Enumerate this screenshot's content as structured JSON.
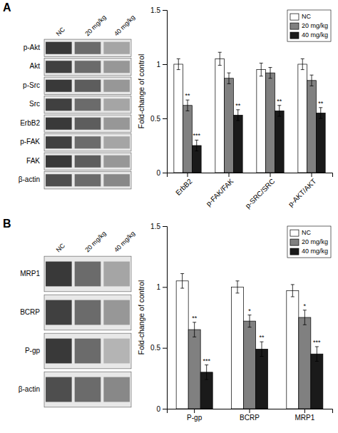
{
  "chart_data": [
    {
      "type": "blot",
      "title": "A",
      "categories": [
        "p-Akt",
        "Akt",
        "p-Src",
        "Src",
        "ErbB2",
        "p-FAK",
        "FAK",
        "β-actin"
      ],
      "x": [
        "NC",
        "20 mg/kg",
        "40 mg/kg"
      ],
      "color": "#e8e8e8",
      "colors": [
        [
          "#1a1a1a",
          "#555555",
          "#999999"
        ],
        [
          "#222222",
          "#555555",
          "#888888"
        ],
        [
          "#1a1a1a",
          "#444444",
          "#888888"
        ],
        [
          "#222222",
          "#555555",
          "#999999"
        ],
        [
          "#1a1a1a",
          "#444444",
          "#888888"
        ],
        [
          "#222222",
          "#555555",
          "#999999"
        ],
        [
          "#1a1a1a",
          "#444444",
          "#888888"
        ],
        [
          "#333333",
          "#555555",
          "#777777"
        ]
      ]
    },
    {
      "type": "bar",
      "categories": [
        "ErbB2",
        "p-FAK/FAK",
        "p-SRC/SRC",
        "p-AKT/AKT"
      ],
      "series": [
        {
          "name": "NC",
          "color": "#ffffff",
          "values": [
            1.0,
            1.05,
            0.95,
            1.0
          ],
          "errors": [
            0.05,
            0.06,
            0.06,
            0.05
          ]
        },
        {
          "name": "20 mg/kg",
          "color": "#808080",
          "values": [
            0.62,
            0.87,
            0.92,
            0.85
          ],
          "errors": [
            0.05,
            0.05,
            0.05,
            0.05
          ],
          "annotations": [
            "**",
            null,
            null,
            null
          ]
        },
        {
          "name": "40 mg/kg",
          "color": "#1a1a1a",
          "values": [
            0.25,
            0.53,
            0.57,
            0.55
          ],
          "errors": [
            0.05,
            0.05,
            0.05,
            0.05
          ],
          "annotations": [
            "***",
            "**",
            "**",
            "**"
          ]
        }
      ],
      "ylabel": "Fold-change of control",
      "ylim": [
        0.0,
        1.5
      ],
      "yticks": [
        0,
        0.5,
        1,
        1.5
      ],
      "legend": "upper right",
      "grid": false
    },
    {
      "type": "blot",
      "title": "B",
      "categories": [
        "MRP1",
        "BCRP",
        "P-gp",
        "β-actin"
      ],
      "x": [
        "NC",
        "20 mg/kg",
        "40 mg/kg"
      ],
      "color": "#e8e8e8",
      "colors": [
        [
          "#1a1a1a",
          "#555555",
          "#999999"
        ],
        [
          "#222222",
          "#555555",
          "#888888"
        ],
        [
          "#1a1a1a",
          "#555555",
          "#aaaaaa"
        ],
        [
          "#333333",
          "#555555",
          "#777777"
        ]
      ]
    },
    {
      "type": "bar",
      "categories": [
        "P-gp",
        "BCRP",
        "MRP1"
      ],
      "series": [
        {
          "name": "NC",
          "color": "#ffffff",
          "values": [
            1.05,
            1.0,
            0.97
          ],
          "errors": [
            0.06,
            0.05,
            0.05
          ]
        },
        {
          "name": "20 mg/kg",
          "color": "#808080",
          "values": [
            0.65,
            0.72,
            0.75
          ],
          "errors": [
            0.06,
            0.05,
            0.06
          ],
          "annotations": [
            "**",
            "*",
            "*"
          ]
        },
        {
          "name": "40 mg/kg",
          "color": "#1a1a1a",
          "values": [
            0.3,
            0.49,
            0.45
          ],
          "errors": [
            0.06,
            0.06,
            0.06
          ],
          "annotations": [
            "***",
            "**",
            "***"
          ]
        }
      ],
      "ylabel": "Fold-change of control",
      "ylim": [
        0.0,
        1.5
      ],
      "yticks": [
        0,
        0.5,
        1,
        1.5
      ],
      "legend": "upper right",
      "grid": false
    }
  ]
}
